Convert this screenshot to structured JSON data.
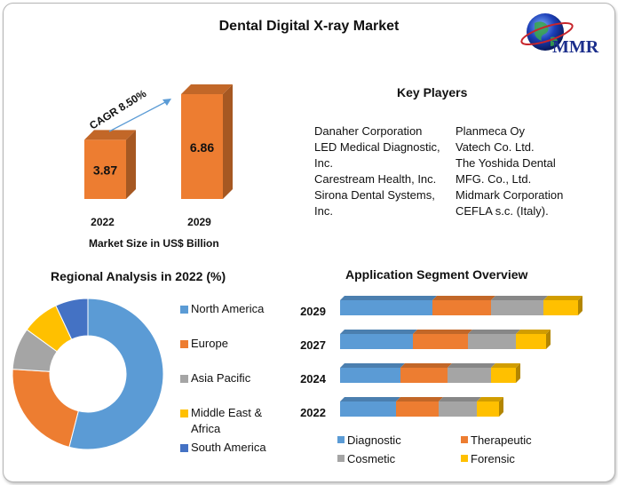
{
  "title": "Dental Digital X-ray Market",
  "logo": {
    "text": "MMR",
    "icon": "globe-icon"
  },
  "key_players": {
    "title": "Key Players",
    "left": [
      "Danaher Corporation",
      "LED Medical Diagnostic,",
      "Inc.",
      "Carestream Health, Inc.",
      "Sirona Dental Systems,",
      "Inc."
    ],
    "right": [
      "Planmeca Oy",
      "Vatech Co. Ltd.",
      "The Yoshida Dental",
      "MFG. Co., Ltd.",
      "Midmark Corporation",
      "CEFLA s.c. (Italy)."
    ]
  },
  "chart_data": [
    {
      "type": "bar",
      "categories": [
        "2022",
        "2029"
      ],
      "values": [
        3.87,
        6.86
      ],
      "value_labels": [
        "3.87",
        "6.86"
      ],
      "xlabel": "Market Size in US$ Billion",
      "annotation": "CAGR 8.50%",
      "color": "#ed7d31"
    },
    {
      "type": "pie",
      "title": "Regional Analysis in 2022 (%)",
      "donut": true,
      "categories": [
        "North America",
        "Europe",
        "Asia Pacific",
        "Middle East & Africa",
        "South America"
      ],
      "values": [
        54,
        22,
        9,
        8,
        7
      ],
      "colors": [
        "#5b9bd5",
        "#ed7d31",
        "#a5a5a5",
        "#ffc000",
        "#4472c4"
      ],
      "legend_lines": [
        [
          "North America"
        ],
        [
          "Europe"
        ],
        [
          "Asia Pacific"
        ],
        [
          "Middle East &",
          "Africa"
        ],
        [
          "South America"
        ]
      ],
      "legend_position": "right"
    },
    {
      "type": "bar",
      "orientation": "horizontal",
      "stacked": true,
      "title": "Application Segment Overview",
      "categories": [
        "2029",
        "2027",
        "2024",
        "2022"
      ],
      "series": [
        {
          "name": "Diagnostic",
          "values": [
            104,
            82,
            68,
            63
          ],
          "color": "#5b9bd5"
        },
        {
          "name": "Therapeutic",
          "values": [
            66,
            62,
            53,
            48
          ],
          "color": "#ed7d31"
        },
        {
          "name": "Cosmetic",
          "values": [
            59,
            54,
            49,
            43
          ],
          "color": "#a5a5a5"
        },
        {
          "name": "Forensic",
          "values": [
            39,
            34,
            28,
            25
          ],
          "color": "#ffc000"
        }
      ],
      "legend_position": "bottom"
    }
  ]
}
